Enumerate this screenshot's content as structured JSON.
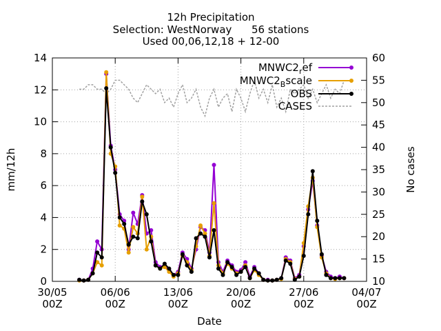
{
  "chart_data": {
    "type": "line",
    "title": [
      "12h Precipitation",
      "Selection: WestNorway      56 stations",
      "Used 00,06,12,18 + 12-00"
    ],
    "xlabel": "Date",
    "ylabel": "mm/12h",
    "y2label": "No cases",
    "xlim": [
      0,
      70
    ],
    "ylim": [
      0,
      14
    ],
    "y2lim": [
      10,
      60
    ],
    "grid": true,
    "legend_position": "top-right",
    "x_ticks": [
      {
        "x": 0,
        "line1": "30/05",
        "line2": "00Z"
      },
      {
        "x": 14,
        "line1": "06/06",
        "line2": "00Z"
      },
      {
        "x": 28,
        "line1": "13/06",
        "line2": "00Z"
      },
      {
        "x": 42,
        "line1": "20/06",
        "line2": "00Z"
      },
      {
        "x": 56,
        "line1": "27/06",
        "line2": "00Z"
      },
      {
        "x": 70,
        "line1": "04/07",
        "line2": "00Z"
      }
    ],
    "y_ticks": [
      "0",
      "2",
      "4",
      "6",
      "8",
      "10",
      "12",
      "14"
    ],
    "y2_ticks": [
      "10",
      "15",
      "20",
      "25",
      "30",
      "35",
      "40",
      "45",
      "50",
      "55",
      "60"
    ],
    "x": [
      6,
      7,
      8,
      9,
      10,
      11,
      12,
      13,
      14,
      15,
      16,
      17,
      18,
      19,
      20,
      21,
      22,
      23,
      24,
      25,
      26,
      27,
      28,
      29,
      30,
      31,
      32,
      33,
      34,
      35,
      36,
      37,
      38,
      39,
      40,
      41,
      42,
      43,
      44,
      45,
      46,
      47,
      48,
      49,
      50,
      51,
      52,
      53,
      54,
      55,
      56,
      57,
      58,
      59,
      60,
      61,
      62,
      63,
      64,
      65
    ],
    "series": [
      {
        "name": "MNWC2_ref",
        "color": "#9400d3",
        "axis": "y",
        "values": [
          0.1,
          0.05,
          0.1,
          0.8,
          2.5,
          2.0,
          13.0,
          8.5,
          7.0,
          4.2,
          3.8,
          2.0,
          4.3,
          3.6,
          5.4,
          3.0,
          3.2,
          1.2,
          0.9,
          1.0,
          0.7,
          0.4,
          0.6,
          1.8,
          1.4,
          0.8,
          2.0,
          3.4,
          3.2,
          1.8,
          7.3,
          1.2,
          0.6,
          1.3,
          1.0,
          0.6,
          0.7,
          1.2,
          0.3,
          0.9,
          0.5,
          0.1,
          0.1,
          0.05,
          0.1,
          0.2,
          1.5,
          1.3,
          0.2,
          0.4,
          2.2,
          4.5,
          6.3,
          3.5,
          1.6,
          0.6,
          0.3,
          0.2,
          0.3,
          0.2
        ]
      },
      {
        "name": "MNWC2_Bscale",
        "color": "#e69f00",
        "axis": "y",
        "values": [
          0.05,
          0.05,
          0.1,
          0.5,
          1.2,
          1.0,
          13.1,
          8.0,
          7.2,
          3.5,
          3.3,
          1.8,
          3.4,
          3.0,
          5.3,
          2.0,
          2.8,
          1.0,
          0.8,
          0.9,
          0.6,
          0.3,
          0.5,
          1.6,
          1.2,
          0.7,
          2.2,
          3.5,
          3.0,
          1.6,
          4.9,
          1.0,
          0.5,
          1.1,
          0.8,
          0.5,
          0.6,
          1.0,
          0.2,
          0.7,
          0.4,
          0.1,
          0.05,
          0.05,
          0.1,
          0.15,
          1.4,
          1.2,
          0.15,
          0.3,
          2.4,
          4.7,
          6.5,
          3.4,
          1.5,
          0.5,
          0.2,
          0.15,
          0.2,
          0.2
        ]
      },
      {
        "name": "OBS",
        "color": "#000000",
        "axis": "y",
        "values": [
          0.1,
          0.05,
          0.1,
          0.5,
          1.8,
          1.5,
          12.1,
          8.4,
          6.8,
          4.0,
          3.6,
          2.3,
          2.8,
          2.7,
          5.0,
          4.2,
          2.5,
          1.0,
          0.8,
          1.1,
          0.8,
          0.4,
          0.4,
          1.7,
          1.0,
          0.6,
          2.7,
          3.0,
          2.8,
          1.5,
          3.2,
          0.8,
          0.4,
          1.2,
          0.9,
          0.4,
          0.6,
          0.9,
          0.2,
          0.8,
          0.5,
          0.1,
          0.05,
          0.05,
          0.1,
          0.2,
          1.3,
          1.1,
          0.1,
          0.3,
          1.6,
          4.2,
          6.9,
          3.8,
          1.7,
          0.4,
          0.2,
          0.2,
          0.2,
          0.2
        ]
      },
      {
        "name": "CASES",
        "color": "#a0a0a0",
        "axis": "y2",
        "values": [
          53,
          53,
          54,
          54,
          53,
          53,
          52,
          53,
          55,
          55,
          54,
          53,
          51,
          50,
          52,
          54,
          53,
          52,
          53,
          50,
          51,
          49,
          52,
          54,
          50,
          51,
          53,
          49,
          47,
          51,
          53,
          49,
          51,
          52,
          48,
          53,
          51,
          48,
          52,
          55,
          51,
          53,
          50,
          54,
          49,
          51,
          48,
          53,
          52,
          53,
          54,
          51,
          53,
          50,
          52,
          54,
          51,
          53,
          52,
          55
        ]
      }
    ]
  }
}
